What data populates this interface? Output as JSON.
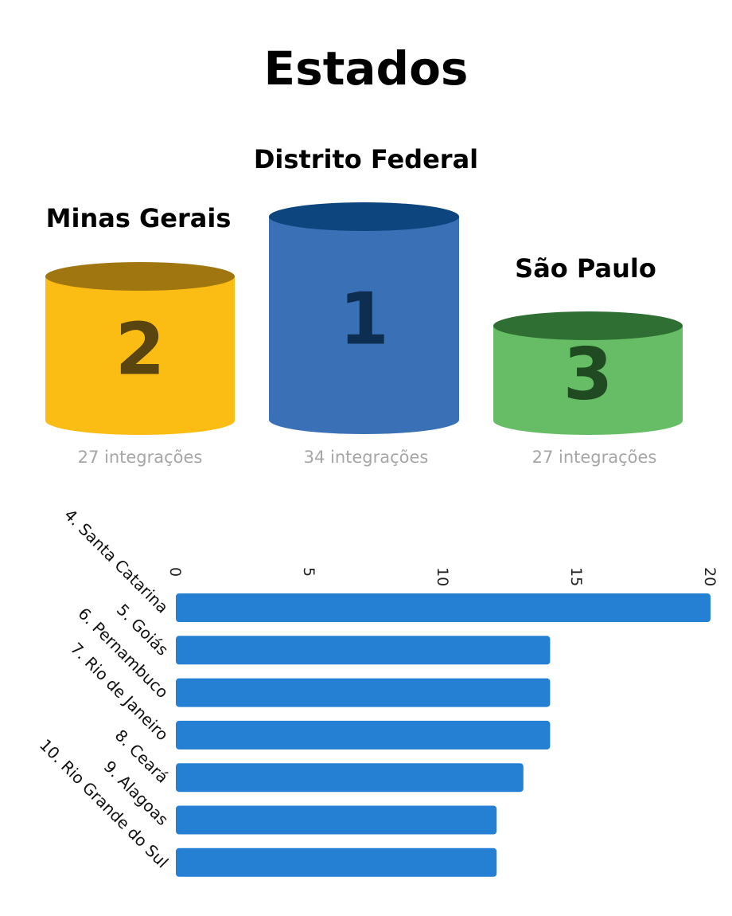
{
  "title": "Estados",
  "podium": [
    {
      "rank": "2",
      "name": "Minas Gerais",
      "count": "27 integrações",
      "color": "#FBBC14",
      "top_color": "#A07610",
      "num_color": "#5A4410"
    },
    {
      "rank": "1",
      "name": "Distrito Federal",
      "count": "34 integrações",
      "color": "#3A70B5",
      "top_color": "#0D457F",
      "num_color": "#0D2E50"
    },
    {
      "rank": "3",
      "name": "São Paulo",
      "count": "27 integrações",
      "color": "#66BD66",
      "top_color": "#2F6F33",
      "num_color": "#1F4A22"
    }
  ],
  "chart_data": {
    "type": "bar",
    "orientation": "horizontal",
    "categories": [
      "4. Santa Catarina",
      "5. Goiás",
      "6. Pernambuco",
      "7. Rio de Janeiro",
      "8. Ceará",
      "9. Alagoas",
      "10. Rio Grande do Sul"
    ],
    "values": [
      20,
      14,
      14,
      14,
      13,
      12,
      12
    ],
    "xlim": [
      0,
      20
    ],
    "ticks": [
      "0",
      "5",
      "10",
      "15",
      "20"
    ],
    "grid": false,
    "bar_color": "#2580D3"
  }
}
